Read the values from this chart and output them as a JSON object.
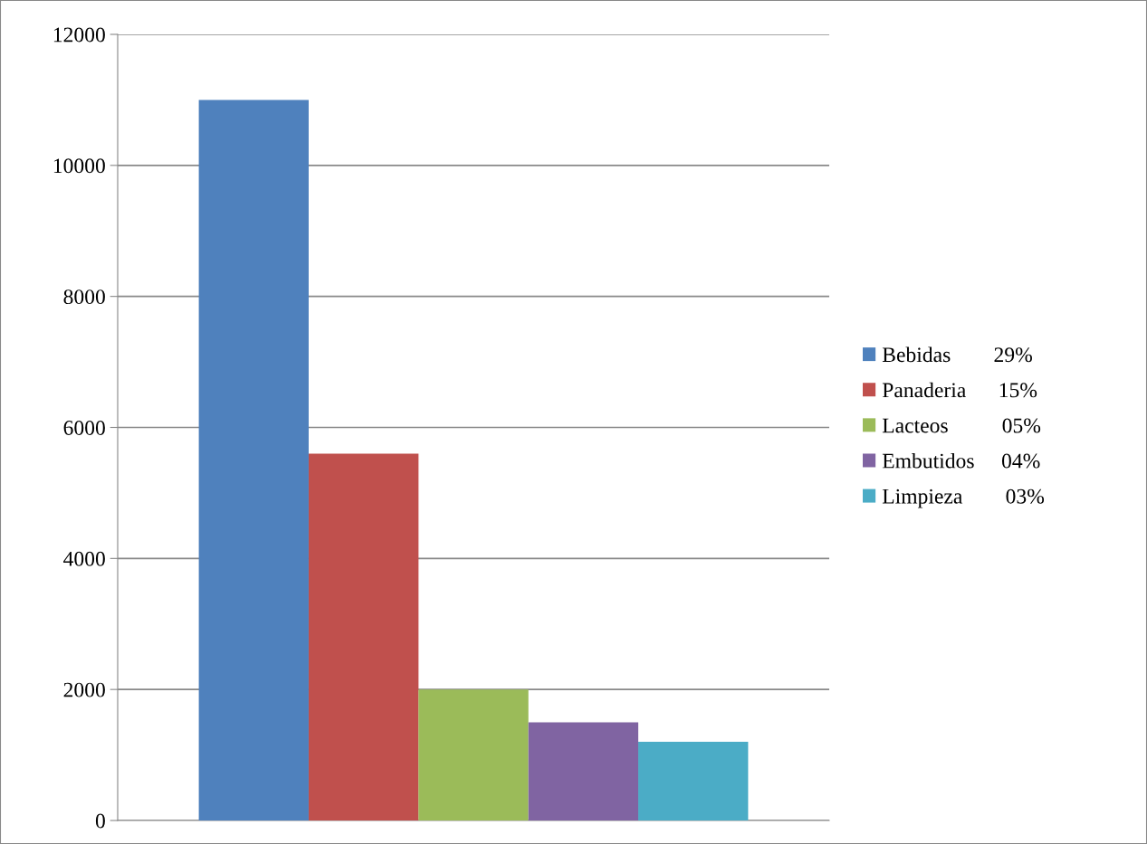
{
  "chart_data": {
    "type": "bar",
    "categories": [
      null
    ],
    "series": [
      {
        "name": "Bebidas        29%",
        "color": "#4f81bd",
        "values": [
          11000
        ]
      },
      {
        "name": "Panaderia      15%",
        "color": "#c0504d",
        "values": [
          5600
        ]
      },
      {
        "name": "Lacteos          05%",
        "color": "#9bbb59",
        "values": [
          2000
        ]
      },
      {
        "name": "Embutidos     04%",
        "color": "#8064a2",
        "values": [
          1500
        ]
      },
      {
        "name": "Limpieza        03%",
        "color": "#4bacc6",
        "values": [
          1200
        ]
      }
    ],
    "ylim": [
      0,
      12000
    ],
    "yticks": [
      0,
      2000,
      4000,
      6000,
      8000,
      10000,
      12000
    ],
    "grid": "y",
    "legend": "right"
  }
}
